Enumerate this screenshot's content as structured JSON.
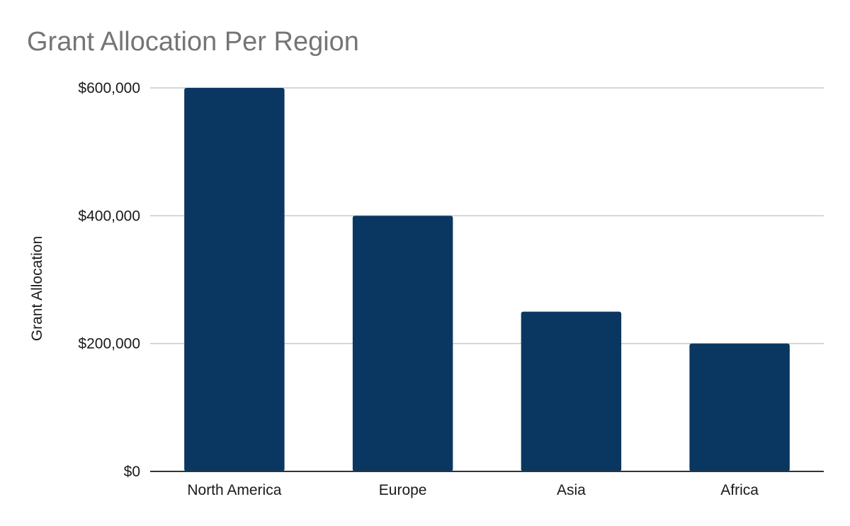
{
  "chart_data": {
    "type": "bar",
    "title": "Grant Allocation Per Region",
    "xlabel": "",
    "ylabel": "Grant Allocation",
    "categories": [
      "North America",
      "Europe",
      "Asia",
      "Africa"
    ],
    "values": [
      600000,
      400000,
      250000,
      200000
    ],
    "ylim": [
      0,
      600000
    ],
    "yticks": [
      0,
      200000,
      400000,
      600000
    ],
    "ytick_labels": [
      "$0",
      "$200,000",
      "$400,000",
      "$600,000"
    ],
    "grid": true,
    "legend": "none",
    "colors": {
      "bar": "#0a3761",
      "grid": "#c8c8c8",
      "axis": "#333333",
      "title": "#757575"
    }
  }
}
